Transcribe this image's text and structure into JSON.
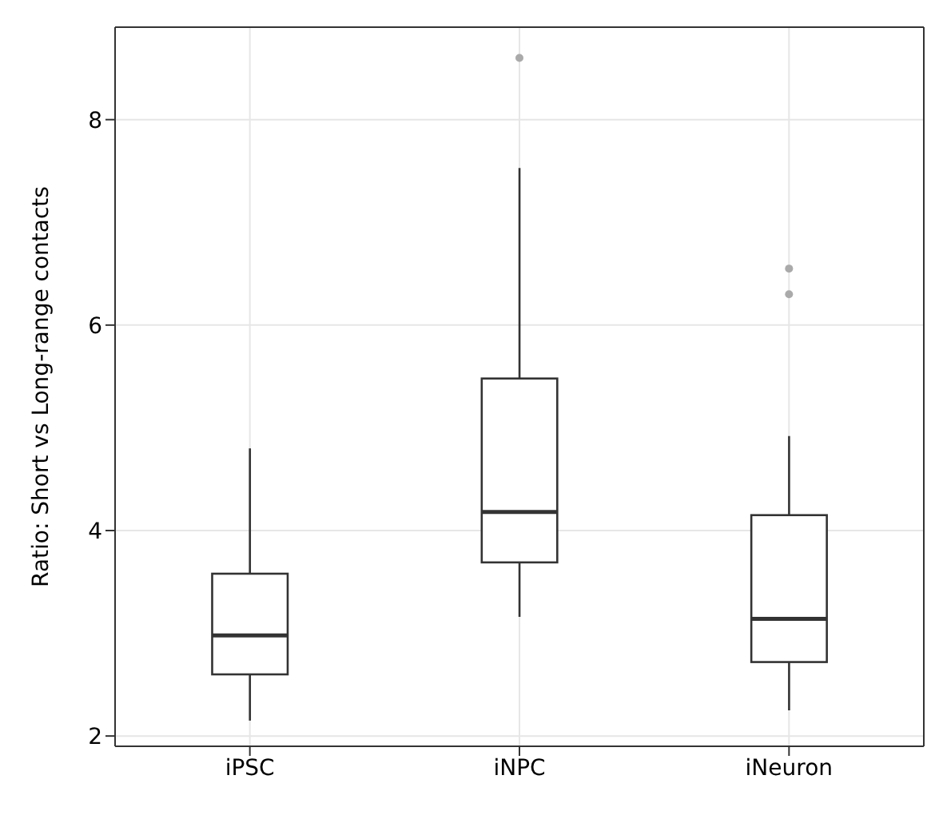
{
  "chart_data": {
    "type": "box",
    "ylabel": "Ratio: Short vs Long-range contacts",
    "categories": [
      "iPSC",
      "iNPC",
      "iNeuron"
    ],
    "boxes": [
      {
        "low": 2.15,
        "q1": 2.6,
        "median": 2.98,
        "q3": 3.58,
        "high": 4.8
      },
      {
        "low": 3.16,
        "q1": 3.69,
        "median": 4.18,
        "q3": 5.48,
        "high": 7.53,
        "outliers": [
          8.6
        ]
      },
      {
        "low": 2.25,
        "q1": 2.72,
        "median": 3.14,
        "q3": 4.15,
        "high": 4.92,
        "outliers": [
          6.3,
          6.55
        ]
      }
    ],
    "color": "#333333",
    "ylim": [
      1.9,
      8.9
    ],
    "yticks": [
      2,
      4,
      6,
      8
    ],
    "grid": true
  }
}
